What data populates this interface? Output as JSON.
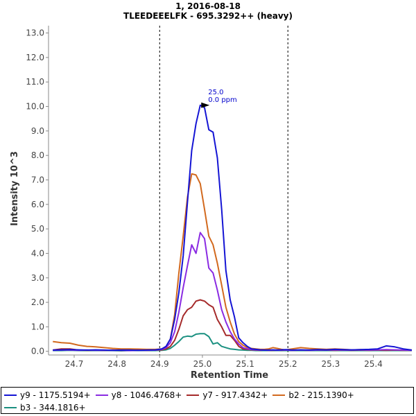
{
  "chart_data": {
    "type": "line",
    "title": "1, 2016-08-18",
    "subtitle": "TLEEDEEELFK - 695.3292++ (heavy)",
    "xlabel": "Retention Time",
    "ylabel": "Intensity 10^3",
    "xlim": [
      24.64,
      25.49
    ],
    "ylim": [
      -0.15,
      13.3
    ],
    "xticks": [
      24.7,
      24.8,
      24.9,
      25.0,
      25.1,
      25.2,
      25.3,
      25.4
    ],
    "xtick_labels": [
      "24.7",
      "24.8",
      "24.9",
      "25.0",
      "25.1",
      "25.2",
      "25.3",
      "25.4"
    ],
    "yticks": [
      0.0,
      1.0,
      2.0,
      3.0,
      4.0,
      5.0,
      6.0,
      7.0,
      8.0,
      9.0,
      10.0,
      11.0,
      12.0,
      13.0
    ],
    "ytick_labels": [
      "0.0",
      "1.0",
      "2.0",
      "3.0",
      "4.0",
      "5.0",
      "6.0",
      "7.0",
      "8.0",
      "9.0",
      "10.0",
      "11.0",
      "12.0",
      "13.0"
    ],
    "vlines": [
      24.9,
      25.2
    ],
    "peak_annotation": {
      "x": 25.02,
      "y": 10.05,
      "label_rt": "25.0",
      "label_ppm": "0.0 ppm"
    },
    "x": [
      24.65,
      24.67,
      24.69,
      24.71,
      24.73,
      24.75,
      24.77,
      24.79,
      24.81,
      24.83,
      24.85,
      24.87,
      24.89,
      24.905,
      24.915,
      24.925,
      24.935,
      24.945,
      24.955,
      24.965,
      24.975,
      24.985,
      24.995,
      25.005,
      25.015,
      25.025,
      25.035,
      25.045,
      25.055,
      25.065,
      25.075,
      25.085,
      25.095,
      25.105,
      25.115,
      25.125,
      25.135,
      25.145,
      25.155,
      25.165,
      25.175,
      25.185,
      25.195,
      25.21,
      25.23,
      25.25,
      25.27,
      25.29,
      25.31,
      25.33,
      25.35,
      25.37,
      25.39,
      25.41,
      25.43,
      25.45,
      25.47,
      25.49
    ],
    "series": [
      {
        "name": "y9 - 1175.5194+",
        "color": "#1414d4",
        "values": [
          0.05,
          0.06,
          0.07,
          0.06,
          0.05,
          0.06,
          0.05,
          0.04,
          0.05,
          0.05,
          0.04,
          0.05,
          0.06,
          0.1,
          0.2,
          0.5,
          1.3,
          2.4,
          3.9,
          6.1,
          8.2,
          9.3,
          10.05,
          9.95,
          9.05,
          8.95,
          7.9,
          5.8,
          3.3,
          2.1,
          1.4,
          0.55,
          0.35,
          0.2,
          0.1,
          0.08,
          0.06,
          0.05,
          0.05,
          0.06,
          0.05,
          0.06,
          0.07,
          0.05,
          0.06,
          0.05,
          0.07,
          0.06,
          0.08,
          0.07,
          0.06,
          0.07,
          0.08,
          0.1,
          0.22,
          0.18,
          0.1,
          0.05
        ]
      },
      {
        "name": "y8 - 1046.4768+",
        "color": "#8a2be2",
        "values": [
          0.04,
          0.05,
          0.05,
          0.04,
          0.05,
          0.04,
          0.04,
          0.04,
          0.04,
          0.03,
          0.04,
          0.04,
          0.05,
          0.08,
          0.15,
          0.35,
          0.8,
          1.6,
          2.6,
          3.5,
          4.35,
          4.0,
          4.85,
          4.6,
          3.4,
          3.2,
          2.5,
          1.7,
          1.2,
          0.8,
          0.5,
          0.3,
          0.15,
          0.1,
          0.07,
          0.06,
          0.05,
          0.05,
          0.04,
          0.05,
          0.04,
          0.05,
          0.05,
          0.04,
          0.05,
          0.04,
          0.05,
          0.05,
          0.06,
          0.05,
          0.05,
          0.06,
          0.05,
          0.06,
          0.07,
          0.06,
          0.05,
          0.04
        ]
      },
      {
        "name": "y7 - 917.4342+",
        "color": "#a52a2a",
        "values": [
          0.05,
          0.1,
          0.1,
          0.05,
          0.04,
          0.05,
          0.04,
          0.05,
          0.04,
          0.04,
          0.05,
          0.04,
          0.05,
          0.06,
          0.1,
          0.2,
          0.45,
          0.9,
          1.45,
          1.7,
          1.8,
          2.05,
          2.1,
          2.05,
          1.9,
          1.8,
          1.3,
          1.0,
          0.65,
          0.65,
          0.45,
          0.2,
          0.1,
          0.08,
          0.06,
          0.05,
          0.04,
          0.05,
          0.04,
          0.04,
          0.05,
          0.04,
          0.05,
          0.04,
          0.05,
          0.04,
          0.05,
          0.05,
          0.04,
          0.05,
          0.04,
          0.05,
          0.04,
          0.05,
          0.04,
          0.05,
          0.04,
          0.04
        ]
      },
      {
        "name": "b2 - 215.1390+",
        "color": "#d2691e",
        "values": [
          0.4,
          0.35,
          0.33,
          0.25,
          0.2,
          0.18,
          0.15,
          0.12,
          0.1,
          0.1,
          0.09,
          0.08,
          0.08,
          0.1,
          0.2,
          0.5,
          1.5,
          3.2,
          4.7,
          6.3,
          7.25,
          7.2,
          6.85,
          5.8,
          4.7,
          4.35,
          3.6,
          2.7,
          1.8,
          1.2,
          0.7,
          0.4,
          0.25,
          0.15,
          0.12,
          0.1,
          0.08,
          0.08,
          0.1,
          0.15,
          0.12,
          0.08,
          0.06,
          0.1,
          0.15,
          0.12,
          0.1,
          0.08,
          0.1,
          0.08,
          0.06,
          0.07,
          0.06,
          0.05,
          0.06,
          0.05,
          0.05,
          0.05
        ]
      },
      {
        "name": "b3 - 344.1816+",
        "color": "#1a9080",
        "values": [
          0.03,
          0.03,
          0.04,
          0.03,
          0.03,
          0.03,
          0.03,
          0.03,
          0.02,
          0.03,
          0.03,
          0.03,
          0.03,
          0.04,
          0.06,
          0.12,
          0.25,
          0.4,
          0.58,
          0.62,
          0.6,
          0.7,
          0.72,
          0.72,
          0.6,
          0.3,
          0.35,
          0.2,
          0.15,
          0.1,
          0.08,
          0.06,
          0.05,
          0.04,
          0.04,
          0.03,
          0.03,
          0.03,
          0.03,
          0.03,
          0.03,
          0.03,
          0.03,
          0.03,
          0.03,
          0.03,
          0.03,
          0.03,
          0.03,
          0.03,
          0.03,
          0.03,
          0.03,
          0.03,
          0.03,
          0.03,
          0.03,
          0.03
        ]
      }
    ]
  },
  "legend": {
    "items": [
      {
        "label": "y9 - 1175.5194+",
        "color": "#1414d4"
      },
      {
        "label": "y8 - 1046.4768+",
        "color": "#8a2be2"
      },
      {
        "label": "y7 - 917.4342+",
        "color": "#a52a2a"
      },
      {
        "label": "b2 - 215.1390+",
        "color": "#d2691e"
      },
      {
        "label": "b3 - 344.1816+",
        "color": "#1a9080"
      }
    ]
  },
  "colors": {
    "annotation": "#0000cc",
    "axis": "#888888",
    "vline": "#000000"
  }
}
